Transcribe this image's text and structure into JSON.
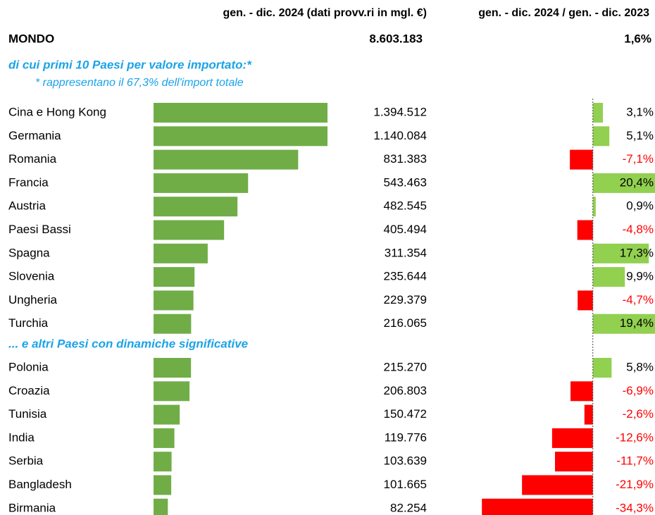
{
  "chart_data": {
    "type": "bar",
    "column_headers": [
      "gen. - dic. 2024 (dati provv.ri in mgl. €)",
      "gen. - dic. 2024 / gen. - dic. 2023"
    ],
    "total": {
      "label": "MONDO",
      "value": 8603183,
      "value_label": "8.603.183",
      "change": 1.6,
      "change_label": "1,6%"
    },
    "xlim": [
      0,
      1000000
    ],
    "change_lim": [
      -35,
      19
    ],
    "colors": {
      "bar": "#70ad47",
      "positive": "#92d050",
      "negative": "#ff0000"
    },
    "groups": [
      {
        "title": "di cui primi 10 Paesi per valore importato:*",
        "note": "* rappresentano il 67,3% dell'import totale",
        "categories": [
          "Cina e Hong Kong",
          "Germania",
          "Romania",
          "Francia",
          "Austria",
          "Paesi Bassi",
          "Spagna",
          "Slovenia",
          "Ungheria",
          "Turchia"
        ],
        "values": [
          1394512,
          1140084,
          831383,
          543463,
          482545,
          405494,
          311354,
          235644,
          229379,
          216065
        ],
        "value_labels": [
          "1.394.512",
          "1.140.084",
          "831.383",
          "543.463",
          "482.545",
          "405.494",
          "311.354",
          "235.644",
          "229.379",
          "216.065"
        ],
        "changes": [
          3.1,
          5.1,
          -7.1,
          20.4,
          0.9,
          -4.8,
          17.3,
          9.9,
          -4.7,
          19.4
        ],
        "change_labels": [
          "3,1%",
          "5,1%",
          "-7,1%",
          "20,4%",
          "0,9%",
          "-4,8%",
          "17,3%",
          "9,9%",
          "-4,7%",
          "19,4%"
        ]
      },
      {
        "title": "... e altri Paesi con dinamiche significative",
        "categories": [
          "Polonia",
          "Croazia",
          "Tunisia",
          "India",
          "Serbia",
          "Bangladesh",
          "Birmania"
        ],
        "values": [
          215270,
          206803,
          150472,
          119776,
          103639,
          101665,
          82254
        ],
        "value_labels": [
          "215.270",
          "206.803",
          "150.472",
          "119.776",
          "103.639",
          "101.665",
          "82.254"
        ],
        "changes": [
          5.8,
          -6.9,
          -2.6,
          -12.6,
          -11.7,
          -21.9,
          -34.3
        ],
        "change_labels": [
          "5,8%",
          "-6,9%",
          "-2,6%",
          "-12,6%",
          "-11,7%",
          "-21,9%",
          "-34,3%"
        ]
      }
    ]
  }
}
